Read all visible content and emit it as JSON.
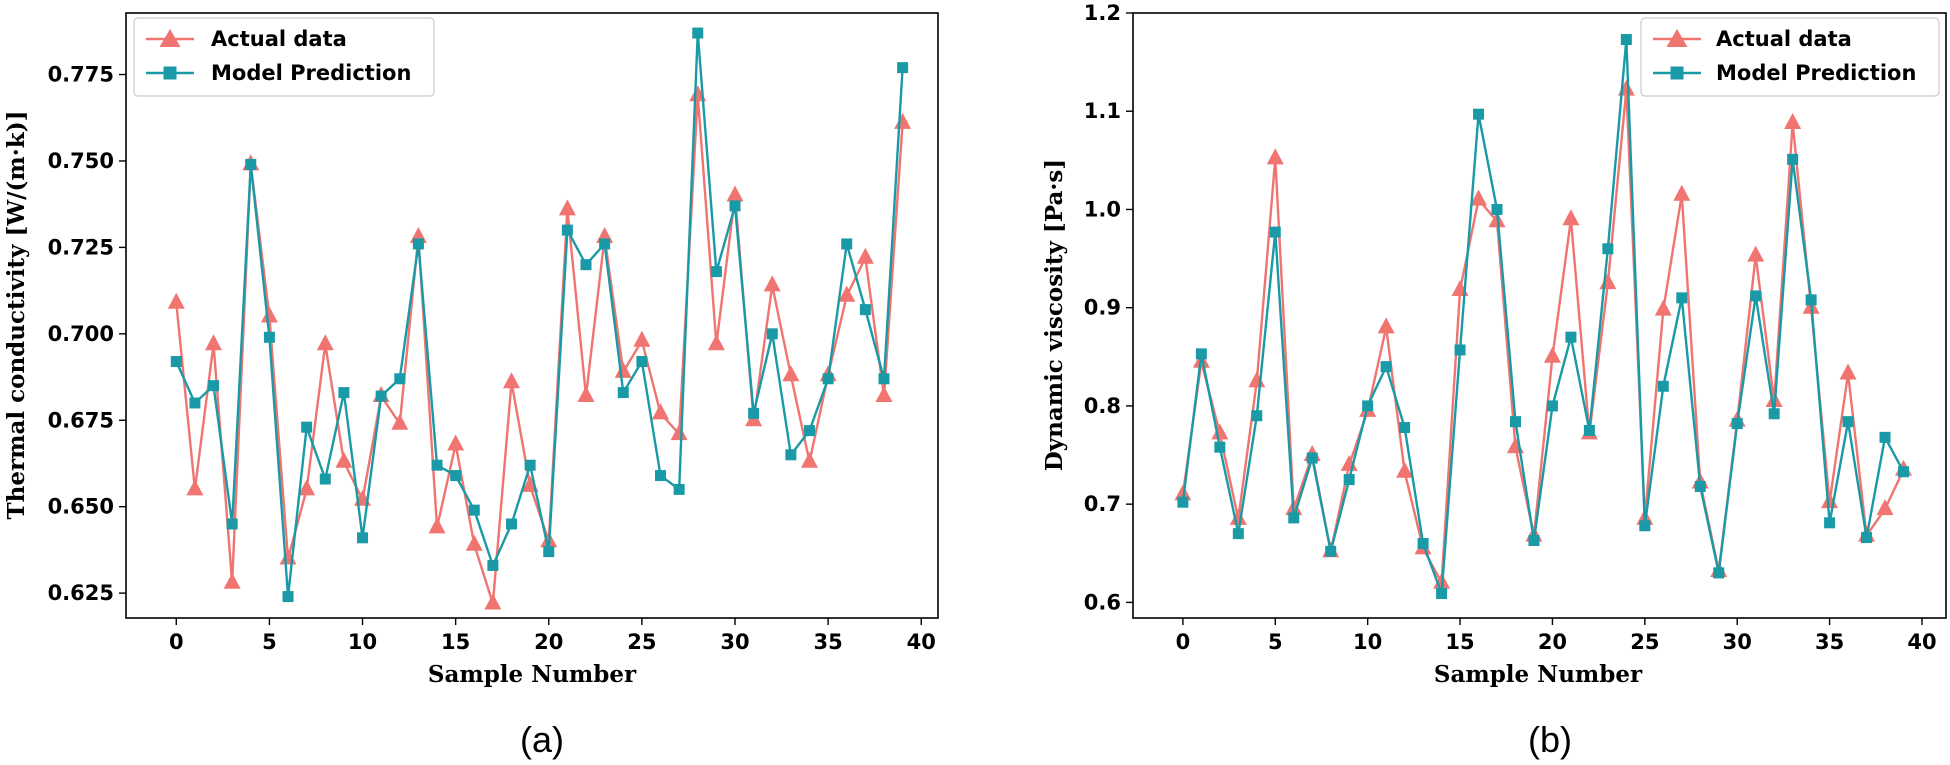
{
  "colors": {
    "actual": "#F07470",
    "prediction": "#1A9AA6",
    "axis": "#000000",
    "legend_border": "#cccccc"
  },
  "chart_data": [
    {
      "type": "line",
      "panel": "(a)",
      "xlabel": "Sample Number",
      "ylabel": "Thermal conductivity [W/(m·k)]",
      "xlim": [
        -2.7,
        40.9
      ],
      "ylim": [
        0.6178,
        0.7928
      ],
      "xticks": [
        0,
        5,
        10,
        15,
        20,
        25,
        30,
        35,
        40
      ],
      "xtick_labels": [
        "0",
        "5",
        "10",
        "15",
        "20",
        "25",
        "30",
        "35",
        "40"
      ],
      "yticks": [
        0.625,
        0.65,
        0.675,
        0.7,
        0.725,
        0.75,
        0.775
      ],
      "ytick_labels": [
        "0.625",
        "0.650",
        "0.675",
        "0.700",
        "0.725",
        "0.750",
        "0.775"
      ],
      "legend_position": "top-left",
      "x": [
        0,
        1,
        2,
        3,
        4,
        5,
        6,
        7,
        8,
        9,
        10,
        11,
        12,
        13,
        14,
        15,
        16,
        17,
        18,
        19,
        20,
        21,
        22,
        23,
        24,
        25,
        26,
        27,
        28,
        29,
        30,
        31,
        32,
        33,
        34,
        35,
        36,
        37,
        38,
        39
      ],
      "series": [
        {
          "name": "Actual data",
          "marker": "triangle",
          "values": [
            0.709,
            0.655,
            0.697,
            0.628,
            0.749,
            0.705,
            0.635,
            0.655,
            0.697,
            0.663,
            0.652,
            0.682,
            0.674,
            0.728,
            0.644,
            0.668,
            0.639,
            0.622,
            0.686,
            0.656,
            0.64,
            0.736,
            0.682,
            0.728,
            0.689,
            0.698,
            0.677,
            0.671,
            0.769,
            0.697,
            0.74,
            0.675,
            0.714,
            0.688,
            0.663,
            0.688,
            0.711,
            0.722,
            0.682,
            0.761
          ]
        },
        {
          "name": "Model Prediction",
          "marker": "square",
          "values": [
            0.692,
            0.68,
            0.685,
            0.645,
            0.749,
            0.699,
            0.624,
            0.673,
            0.658,
            0.683,
            0.641,
            0.682,
            0.687,
            0.726,
            0.662,
            0.659,
            0.649,
            0.633,
            0.645,
            0.662,
            0.637,
            0.73,
            0.72,
            0.726,
            0.683,
            0.692,
            0.659,
            0.655,
            0.787,
            0.718,
            0.737,
            0.677,
            0.7,
            0.665,
            0.672,
            0.687,
            0.726,
            0.707,
            0.687,
            0.777
          ]
        }
      ]
    },
    {
      "type": "line",
      "panel": "(b)",
      "xlabel": "Sample Number",
      "ylabel": "Dynamic viscosity [Pa·s]",
      "xlim": [
        -2.7,
        41.3
      ],
      "ylim": [
        0.5841,
        1.2
      ],
      "xticks": [
        0,
        5,
        10,
        15,
        20,
        25,
        30,
        35,
        40
      ],
      "xtick_labels": [
        "0",
        "5",
        "10",
        "15",
        "20",
        "25",
        "30",
        "35",
        "40"
      ],
      "yticks": [
        0.6,
        0.7,
        0.8,
        0.9,
        1.0,
        1.1,
        1.2
      ],
      "ytick_labels": [
        "0.6",
        "0.7",
        "0.8",
        "0.9",
        "1.0",
        "1.1",
        "1.2"
      ],
      "legend_position": "top-right",
      "x": [
        0,
        1,
        2,
        3,
        4,
        5,
        6,
        7,
        8,
        9,
        10,
        11,
        12,
        13,
        14,
        15,
        16,
        17,
        18,
        19,
        20,
        21,
        22,
        23,
        24,
        25,
        26,
        27,
        28,
        29,
        30,
        31,
        32,
        33,
        34,
        35,
        36,
        37,
        38,
        39
      ],
      "series": [
        {
          "name": "Actual data",
          "marker": "triangle",
          "values": [
            0.71,
            0.845,
            0.772,
            0.685,
            0.825,
            1.052,
            0.695,
            0.75,
            0.652,
            0.74,
            0.795,
            0.88,
            0.733,
            0.655,
            0.62,
            0.918,
            1.01,
            0.988,
            0.758,
            0.668,
            0.85,
            0.99,
            0.772,
            0.925,
            1.122,
            0.685,
            0.898,
            1.015,
            0.722,
            0.632,
            0.785,
            0.953,
            0.805,
            1.088,
            0.9,
            0.702,
            0.833,
            0.668,
            0.695,
            0.735
          ]
        },
        {
          "name": "Model Prediction",
          "marker": "square",
          "values": [
            0.702,
            0.853,
            0.758,
            0.67,
            0.79,
            0.977,
            0.686,
            0.747,
            0.652,
            0.725,
            0.8,
            0.84,
            0.778,
            0.66,
            0.609,
            0.857,
            1.097,
            1.0,
            0.784,
            0.663,
            0.8,
            0.87,
            0.775,
            0.96,
            1.173,
            0.678,
            0.82,
            0.91,
            0.718,
            0.63,
            0.782,
            0.912,
            0.792,
            1.051,
            0.908,
            0.681,
            0.784,
            0.666,
            0.768,
            0.733
          ]
        }
      ]
    }
  ]
}
